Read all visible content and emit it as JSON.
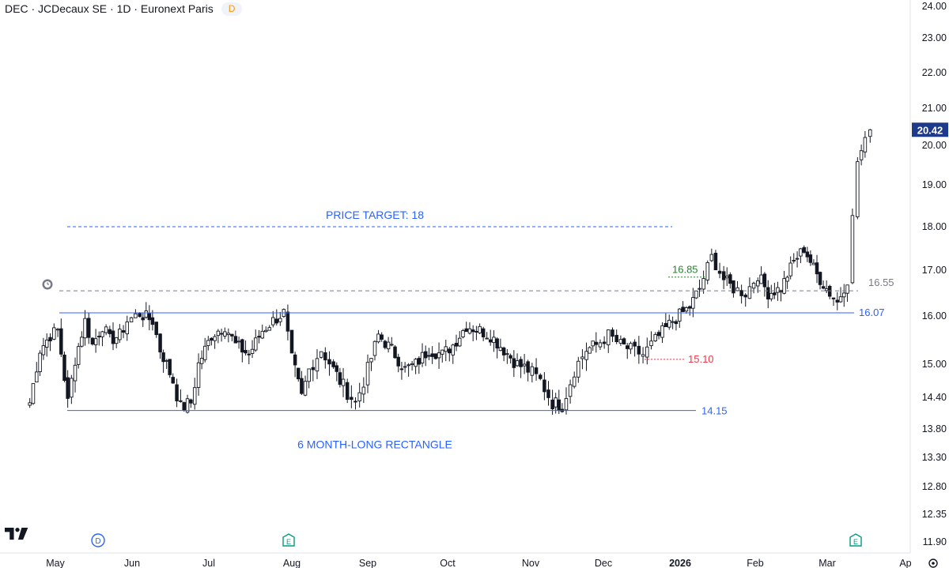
{
  "header": {
    "title": "DEC · JCDecaux SE · 1D · Euronext Paris",
    "badge": "D"
  },
  "colors": {
    "blue": "#2962ff",
    "green": "#2e7d32",
    "red": "#f23645",
    "gray": "#787b86",
    "price_tag": "#1e3a8a"
  },
  "chart_data": {
    "type": "candlestick",
    "y_ticks": [
      "24.00",
      "23.00",
      "22.00",
      "21.00",
      "20.00",
      "19.00",
      "18.00",
      "17.00",
      "16.00",
      "15.00",
      "14.40",
      "13.80",
      "13.30",
      "12.80",
      "12.35",
      "11.90"
    ],
    "x_ticks": [
      "May",
      "Jun",
      "Jul",
      "Aug",
      "Sep",
      "Oct",
      "Nov",
      "Dec",
      "2026",
      "Feb",
      "Mar",
      "Ap"
    ],
    "ylim": [
      11.9,
      24.0
    ],
    "last_price": "20.42",
    "annotations": {
      "price_target": "PRICE TARGET: 18",
      "rectangle": "6 MONTH-LONG RECTANGLE",
      "level_16_85": "16.85",
      "level_16_55": "16.55",
      "level_16_07": "16.07",
      "level_15_10": "15.10",
      "level_14_15": "14.15"
    },
    "events": [
      "D",
      "E",
      "E"
    ],
    "close_points": [
      [
        "2025-04-21",
        14.3
      ],
      [
        "2025-04-25",
        15.3
      ],
      [
        "2025-04-29",
        15.6
      ],
      [
        "2025-05-02",
        15.7
      ],
      [
        "2025-05-06",
        14.3
      ],
      [
        "2025-05-09",
        15.1
      ],
      [
        "2025-05-13",
        15.9
      ],
      [
        "2025-05-16",
        15.4
      ],
      [
        "2025-05-20",
        15.8
      ],
      [
        "2025-05-23",
        15.5
      ],
      [
        "2025-05-27",
        15.6
      ],
      [
        "2025-05-30",
        15.9
      ],
      [
        "2025-06-04",
        16.05
      ],
      [
        "2025-06-09",
        15.9
      ],
      [
        "2025-06-12",
        15.3
      ],
      [
        "2025-06-17",
        14.7
      ],
      [
        "2025-06-20",
        14.2
      ],
      [
        "2025-06-24",
        14.3
      ],
      [
        "2025-06-27",
        15.0
      ],
      [
        "2025-07-02",
        15.6
      ],
      [
        "2025-07-07",
        15.8
      ],
      [
        "2025-07-11",
        15.4
      ],
      [
        "2025-07-16",
        15.2
      ],
      [
        "2025-07-21",
        15.7
      ],
      [
        "2025-07-25",
        15.9
      ],
      [
        "2025-07-29",
        16.07
      ],
      [
        "2025-08-01",
        15.1
      ],
      [
        "2025-08-05",
        14.4
      ],
      [
        "2025-08-08",
        14.9
      ],
      [
        "2025-08-13",
        15.3
      ],
      [
        "2025-08-18",
        14.9
      ],
      [
        "2025-08-22",
        14.6
      ],
      [
        "2025-08-27",
        14.3
      ],
      [
        "2025-09-01",
        14.9
      ],
      [
        "2025-09-05",
        15.6
      ],
      [
        "2025-09-10",
        15.3
      ],
      [
        "2025-09-15",
        14.9
      ],
      [
        "2025-09-19",
        15.0
      ],
      [
        "2025-09-24",
        15.3
      ],
      [
        "2025-09-29",
        15.2
      ],
      [
        "2025-10-03",
        15.4
      ],
      [
        "2025-10-08",
        15.8
      ],
      [
        "2025-10-13",
        15.7
      ],
      [
        "2025-10-17",
        15.6
      ],
      [
        "2025-10-22",
        15.3
      ],
      [
        "2025-10-27",
        15.0
      ],
      [
        "2025-10-31",
        14.9
      ],
      [
        "2025-11-05",
        14.7
      ],
      [
        "2025-11-10",
        14.3
      ],
      [
        "2025-11-14",
        14.25
      ],
      [
        "2025-11-19",
        14.9
      ],
      [
        "2025-11-24",
        15.3
      ],
      [
        "2025-11-28",
        15.4
      ],
      [
        "2025-12-03",
        15.6
      ],
      [
        "2025-12-08",
        15.4
      ],
      [
        "2025-12-12",
        15.3
      ],
      [
        "2025-12-17",
        15.2
      ],
      [
        "2025-12-22",
        15.5
      ],
      [
        "2025-12-29",
        15.9
      ],
      [
        "2026-01-05",
        16.2
      ],
      [
        "2026-01-09",
        16.6
      ],
      [
        "2026-01-14",
        17.3
      ],
      [
        "2026-01-19",
        16.8
      ],
      [
        "2026-01-23",
        16.6
      ],
      [
        "2026-01-28",
        16.5
      ],
      [
        "2026-02-02",
        16.9
      ],
      [
        "2026-02-06",
        16.5
      ],
      [
        "2026-02-11",
        16.6
      ],
      [
        "2026-02-16",
        17.2
      ],
      [
        "2026-02-20",
        17.5
      ],
      [
        "2026-02-25",
        16.9
      ],
      [
        "2026-03-02",
        16.5
      ],
      [
        "2026-03-05",
        16.3
      ],
      [
        "2026-03-09",
        16.8
      ],
      [
        "2026-03-11",
        18.2
      ],
      [
        "2026-03-13",
        19.6
      ],
      [
        "2026-03-16",
        20.1
      ],
      [
        "2026-03-18",
        20.42
      ]
    ]
  }
}
